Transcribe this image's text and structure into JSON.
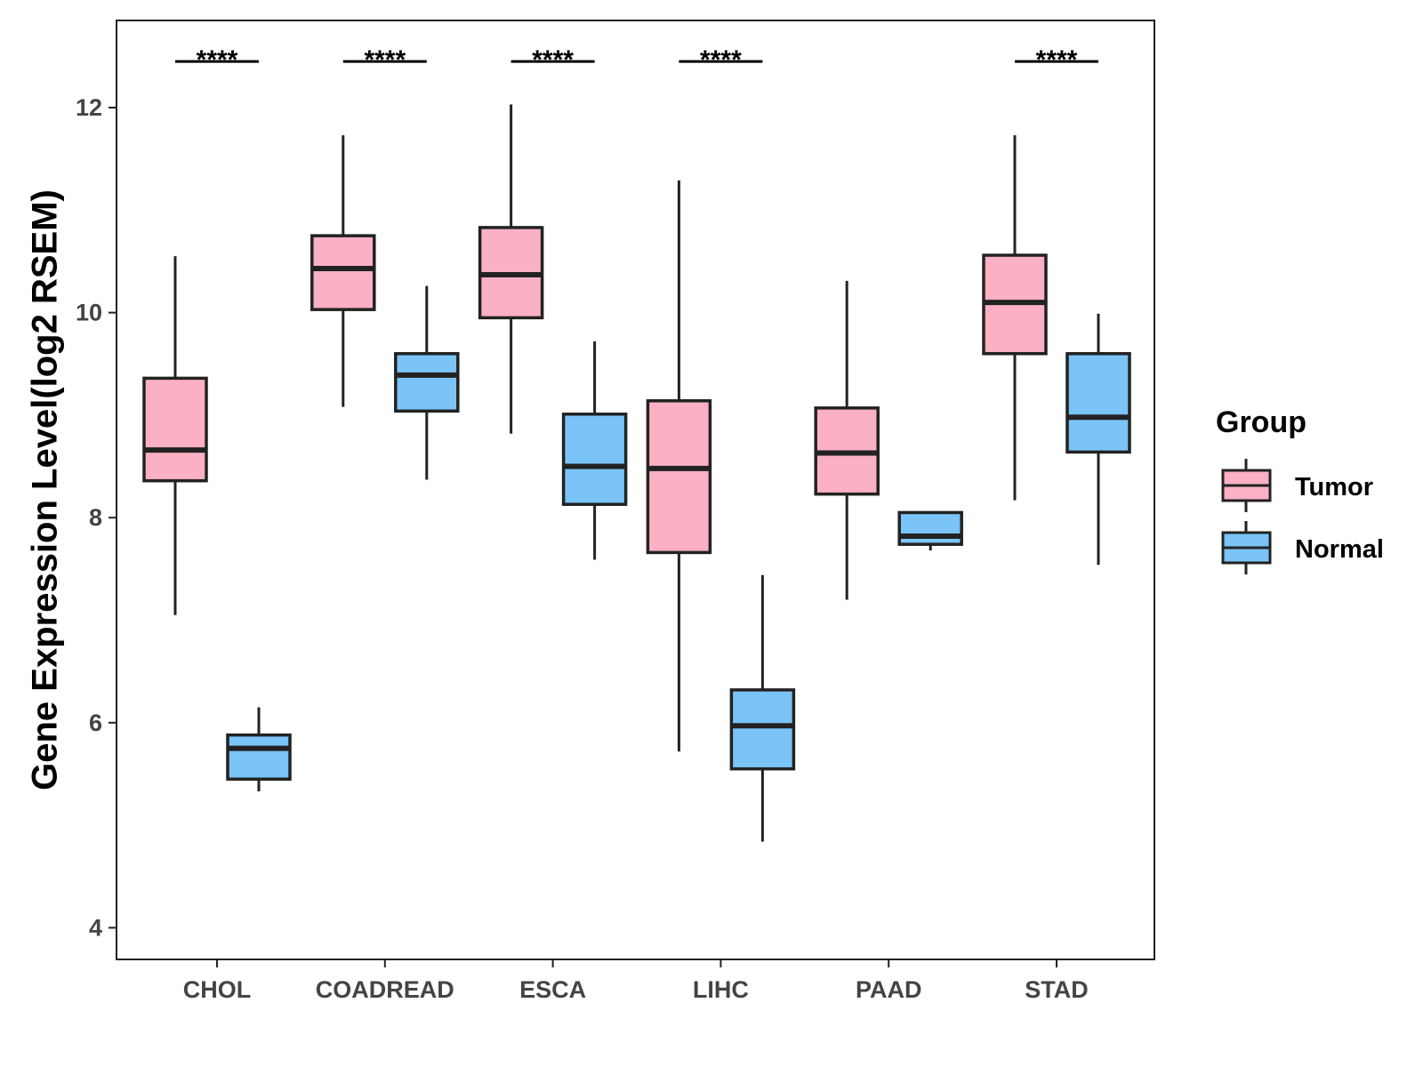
{
  "chart_data": {
    "type": "boxplot",
    "title": "",
    "xlabel": "",
    "ylabel": "Gene Expression Level(log2 RSEM)",
    "ylim": [
      3.7,
      12.85
    ],
    "yticks": [
      4,
      6,
      8,
      10,
      12
    ],
    "categories": [
      "CHOL",
      "COADREAD",
      "ESCA",
      "LIHC",
      "PAAD",
      "STAD"
    ],
    "legend": {
      "title": "Group",
      "position": "right"
    },
    "series": [
      {
        "name": "Tumor",
        "color": "#FBB1C3",
        "boxes": [
          {
            "min": 7.05,
            "q1": 8.36,
            "median": 8.66,
            "q3": 9.36,
            "max": 10.55
          },
          {
            "min": 9.08,
            "q1": 10.03,
            "median": 10.43,
            "q3": 10.75,
            "max": 11.73
          },
          {
            "min": 8.82,
            "q1": 9.95,
            "median": 10.37,
            "q3": 10.83,
            "max": 12.03
          },
          {
            "min": 5.72,
            "q1": 7.66,
            "median": 8.48,
            "q3": 9.14,
            "max": 11.29
          },
          {
            "min": 7.2,
            "q1": 8.23,
            "median": 8.63,
            "q3": 9.07,
            "max": 10.31
          },
          {
            "min": 8.17,
            "q1": 9.6,
            "median": 10.1,
            "q3": 10.56,
            "max": 11.73
          }
        ]
      },
      {
        "name": "Normal",
        "color": "#7AC4F8",
        "boxes": [
          {
            "min": 5.33,
            "q1": 5.45,
            "median": 5.75,
            "q3": 5.88,
            "max": 6.15
          },
          {
            "min": 8.37,
            "q1": 9.04,
            "median": 9.39,
            "q3": 9.6,
            "max": 10.26
          },
          {
            "min": 7.59,
            "q1": 8.13,
            "median": 8.5,
            "q3": 9.01,
            "max": 9.72
          },
          {
            "min": 4.84,
            "q1": 5.55,
            "median": 5.97,
            "q3": 6.32,
            "max": 7.44
          },
          {
            "min": 7.68,
            "q1": 7.74,
            "median": 7.82,
            "q3": 8.05,
            "max": 8.05
          },
          {
            "min": 7.54,
            "q1": 8.64,
            "median": 8.98,
            "q3": 9.6,
            "max": 9.99
          }
        ]
      }
    ],
    "significance": [
      "****",
      "****",
      "****",
      "****",
      "",
      "****"
    ],
    "significance_y": 12.45
  }
}
